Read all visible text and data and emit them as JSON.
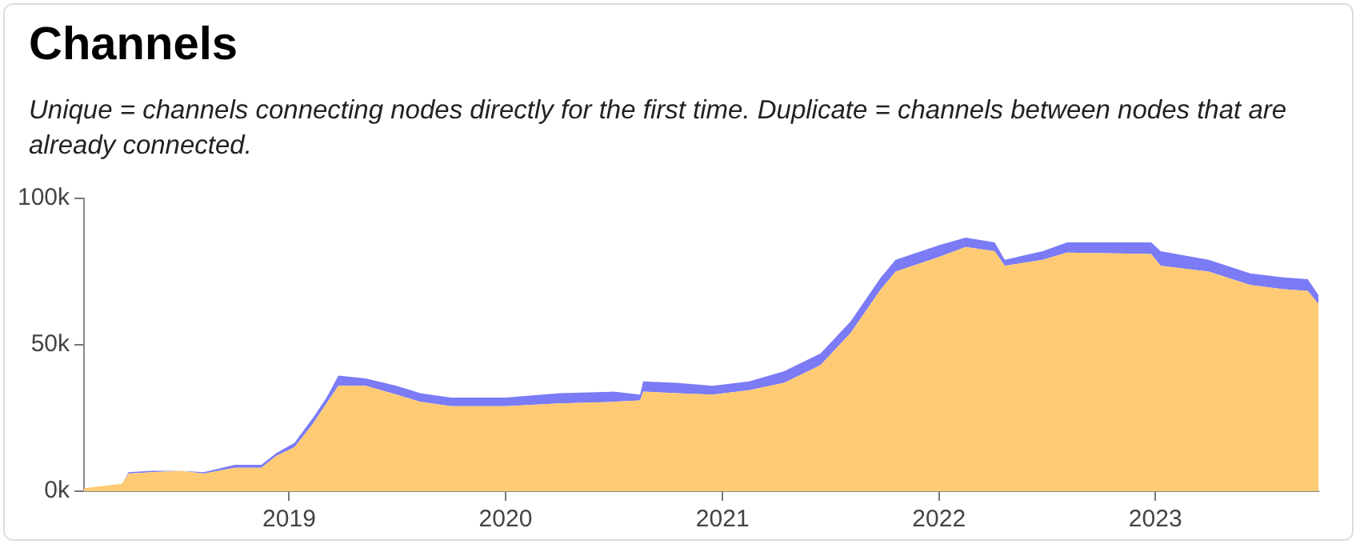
{
  "chart_data": {
    "type": "area",
    "title": "Channels",
    "subtitle": "Unique = channels connecting nodes directly for the first time. Duplicate = channels between nodes that are already connected.",
    "x": [
      "2018-01-20",
      "2018-03-25",
      "2018-04-05",
      "2018-05-15",
      "2018-07-01",
      "2018-08-10",
      "2018-10-01",
      "2018-11-15",
      "2018-12-10",
      "2019-01-10",
      "2019-02-10",
      "2019-03-05",
      "2019-03-25",
      "2019-05-10",
      "2019-07-01",
      "2019-08-10",
      "2019-10-01",
      "2020-01-01",
      "2020-04-01",
      "2020-07-01",
      "2020-08-15",
      "2020-08-20",
      "2020-10-15",
      "2020-12-15",
      "2021-02-15",
      "2021-04-15",
      "2021-06-15",
      "2021-08-05",
      "2021-09-25",
      "2021-10-20",
      "2022-01-01",
      "2022-02-15",
      "2022-04-05",
      "2022-04-22",
      "2022-06-25",
      "2022-08-05",
      "2022-12-25",
      "2023-01-10",
      "2023-04-01",
      "2023-06-10",
      "2023-08-05",
      "2023-09-15",
      "2023-10-03"
    ],
    "series": [
      {
        "color": "#fecb74",
        "values": [
          1,
          2.5,
          6,
          6.5,
          7,
          6,
          8,
          8,
          12,
          15,
          23,
          30,
          36,
          36,
          33,
          30.5,
          29,
          29,
          30,
          30.5,
          31,
          34,
          33.5,
          33,
          34.5,
          37,
          43,
          54,
          69,
          75,
          80,
          83.4,
          82,
          77,
          79,
          81.5,
          81,
          77,
          75,
          70.4,
          69,
          68.4,
          64
        ]
      },
      {
        "color": "#7b7bf6",
        "values": [
          0,
          0,
          0.5,
          0.5,
          0,
          0.5,
          1,
          1,
          1,
          1.5,
          2,
          2,
          3.5,
          2.5,
          3,
          3,
          3,
          3,
          3.5,
          3.5,
          2,
          3.5,
          3.5,
          3,
          3,
          4,
          4,
          4,
          4,
          4,
          4,
          3.2,
          3,
          2,
          3,
          3.5,
          4,
          5,
          4,
          4,
          4,
          4,
          3
        ]
      }
    ],
    "xlim": [
      "2018-01-20",
      "2023-10-03"
    ],
    "xticks": [
      {
        "value": "2019-01-01",
        "label": "2019"
      },
      {
        "value": "2020-01-01",
        "label": "2020"
      },
      {
        "value": "2021-01-01",
        "label": "2021"
      },
      {
        "value": "2022-01-01",
        "label": "2022"
      },
      {
        "value": "2023-01-01",
        "label": "2023"
      }
    ],
    "ylim": [
      0,
      100
    ],
    "yticks": [
      {
        "value": 0,
        "label": "0k"
      },
      {
        "value": 50,
        "label": "50k"
      },
      {
        "value": 100,
        "label": "100k"
      }
    ],
    "stacked": true,
    "grid": false,
    "legend": false
  }
}
